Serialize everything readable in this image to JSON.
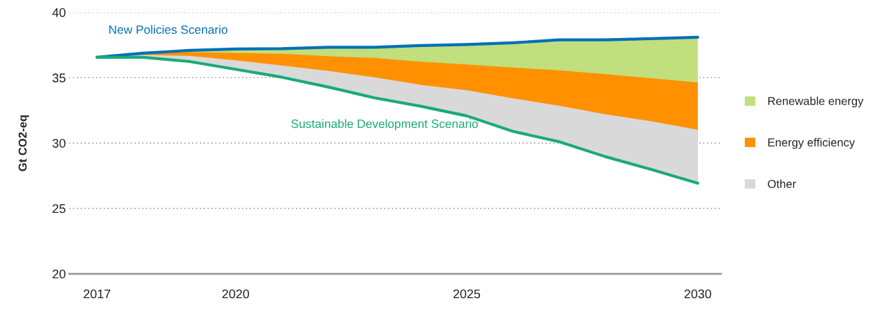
{
  "chart_data": {
    "type": "area",
    "ylabel": "Gt CO2-eq",
    "x": [
      2017,
      2018,
      2019,
      2020,
      2021,
      2022,
      2023,
      2024,
      2025,
      2026,
      2027,
      2028,
      2029,
      2030
    ],
    "xlim": [
      2016.4,
      2030.5
    ],
    "xticks": [
      2017,
      2020,
      2025,
      2030
    ],
    "ylim": [
      20,
      40
    ],
    "yticks": [
      20,
      25,
      30,
      35,
      40
    ],
    "grid": "y",
    "legend": "right",
    "series": [
      {
        "name": "Other",
        "color": "#d9d9d9",
        "values": [
          36.56,
          36.75,
          36.67,
          36.33,
          35.93,
          35.52,
          35.04,
          34.46,
          34.04,
          33.42,
          32.86,
          32.2,
          31.66,
          31.02
        ]
      },
      {
        "name": "Energy efficiency",
        "color": "#ff9100",
        "values": [
          36.56,
          36.88,
          36.97,
          36.9,
          36.83,
          36.65,
          36.51,
          36.23,
          36.01,
          35.78,
          35.57,
          35.27,
          34.96,
          34.64
        ]
      },
      {
        "name": "Renewable energy",
        "color": "#c1df7c",
        "values": [
          36.56,
          36.88,
          37.09,
          37.2,
          37.22,
          37.33,
          37.33,
          37.46,
          37.54,
          37.67,
          37.9,
          37.9,
          37.99,
          38.1
        ]
      },
      {
        "name": "New Policies Scenario",
        "type": "line",
        "color": "#0070b8",
        "values": [
          36.56,
          36.88,
          37.09,
          37.2,
          37.22,
          37.33,
          37.33,
          37.46,
          37.54,
          37.67,
          37.9,
          37.9,
          37.99,
          38.1
        ]
      },
      {
        "name": "Sustainable Development Scenario",
        "type": "line",
        "color": "#1aaa78",
        "values": [
          36.56,
          36.56,
          36.24,
          35.64,
          35.04,
          34.29,
          33.46,
          32.82,
          32.08,
          30.9,
          30.1,
          28.96,
          27.97,
          26.93
        ]
      }
    ]
  }
}
